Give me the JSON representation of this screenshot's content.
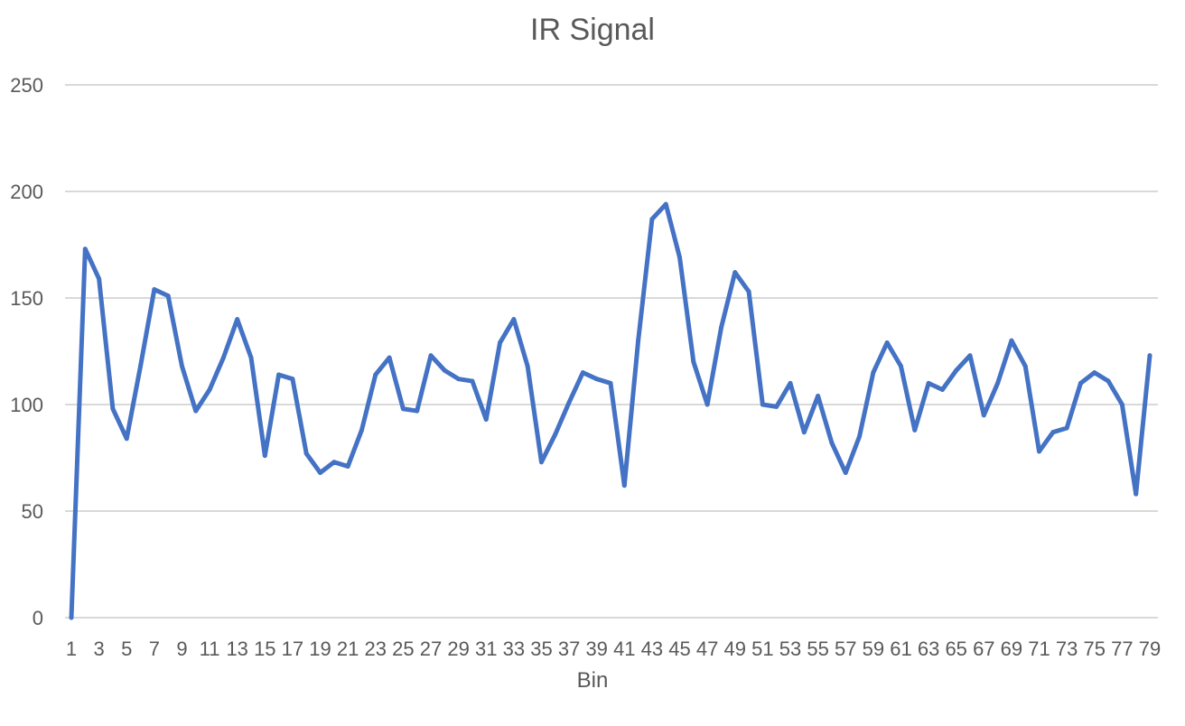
{
  "chart_data": {
    "type": "line",
    "title": "IR Signal",
    "xlabel": "Bin",
    "ylabel": "",
    "ylim": [
      0,
      250
    ],
    "yticks": [
      0,
      50,
      100,
      150,
      200,
      250
    ],
    "x": [
      1,
      2,
      3,
      4,
      5,
      6,
      7,
      8,
      9,
      10,
      11,
      12,
      13,
      14,
      15,
      16,
      17,
      18,
      19,
      20,
      21,
      22,
      23,
      24,
      25,
      26,
      27,
      28,
      29,
      30,
      31,
      32,
      33,
      34,
      35,
      36,
      37,
      38,
      39,
      40,
      41,
      42,
      43,
      44,
      45,
      46,
      47,
      48,
      49,
      50,
      51,
      52,
      53,
      54,
      55,
      56,
      57,
      58,
      59,
      60,
      61,
      62,
      63,
      64,
      65,
      66,
      67,
      68,
      69,
      70,
      71,
      72,
      73,
      74,
      75,
      76,
      77,
      78,
      79
    ],
    "x_tick_labels": [
      "1",
      "3",
      "5",
      "7",
      "9",
      "11",
      "13",
      "15",
      "17",
      "19",
      "21",
      "23",
      "25",
      "27",
      "29",
      "31",
      "33",
      "35",
      "37",
      "39",
      "41",
      "43",
      "45",
      "47",
      "49",
      "51",
      "53",
      "55",
      "57",
      "59",
      "61",
      "63",
      "65",
      "67",
      "69",
      "71",
      "73",
      "75",
      "77",
      "79"
    ],
    "grid": "horizontal",
    "legend": "none",
    "series": [
      {
        "color": "#4472C4",
        "values": [
          0,
          173,
          159,
          98,
          84,
          118,
          154,
          151,
          118,
          97,
          107,
          122,
          140,
          122,
          76,
          114,
          112,
          77,
          68,
          73,
          71,
          88,
          114,
          122,
          98,
          97,
          123,
          116,
          112,
          111,
          93,
          129,
          140,
          118,
          73,
          86,
          101,
          115,
          112,
          110,
          62,
          130,
          187,
          194,
          169,
          120,
          100,
          136,
          162,
          153,
          100,
          99,
          110,
          87,
          104,
          82,
          68,
          85,
          115,
          129,
          118,
          88,
          110,
          107,
          116,
          123,
          95,
          110,
          130,
          118,
          78,
          87,
          89,
          110,
          115,
          111,
          100,
          58,
          123
        ]
      }
    ]
  }
}
